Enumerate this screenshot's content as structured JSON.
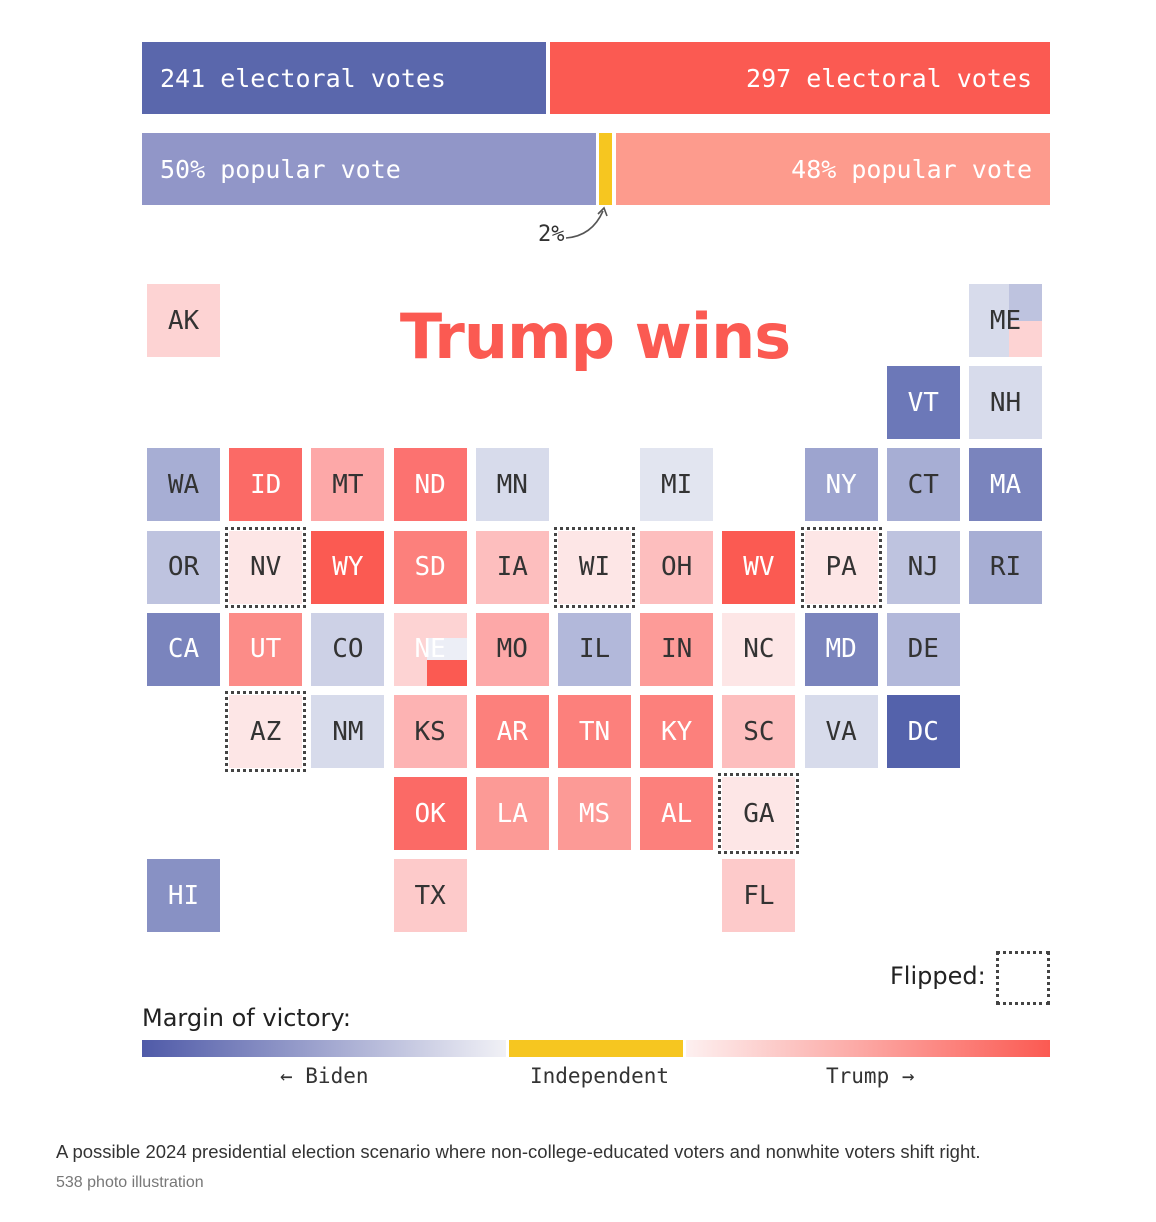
{
  "bars": {
    "biden_ev": "241 electoral votes",
    "trump_ev": "297 electoral votes",
    "biden_pv": "50% popular vote",
    "trump_pv": "48% popular vote",
    "independent_pv": "2%"
  },
  "title": "Trump wins",
  "colors": {
    "biden_dark": "#5a67ac",
    "trump_dark": "#fb5a52",
    "biden_pv": "#9196c8",
    "trump_pv": "#fd9b8d",
    "independent": "#f6c620"
  },
  "states": [
    {
      "abbr": "AK",
      "col": 0,
      "row": 0,
      "fill": "#fdd3d3",
      "text": "dark"
    },
    {
      "abbr": "ME",
      "col": 10,
      "row": 0,
      "fill": "#d7dbeb",
      "text": "dark",
      "split": "me"
    },
    {
      "abbr": "VT",
      "col": 9,
      "row": 1,
      "fill": "#6c78b8",
      "text": "light"
    },
    {
      "abbr": "NH",
      "col": 10,
      "row": 1,
      "fill": "#d7dbeb",
      "text": "dark"
    },
    {
      "abbr": "WA",
      "col": 0,
      "row": 2,
      "fill": "#a7aed4",
      "text": "dark"
    },
    {
      "abbr": "ID",
      "col": 1,
      "row": 2,
      "fill": "#fb6a66",
      "text": "light"
    },
    {
      "abbr": "MT",
      "col": 2,
      "row": 2,
      "fill": "#fda8a8",
      "text": "dark"
    },
    {
      "abbr": "ND",
      "col": 3,
      "row": 2,
      "fill": "#fc7270",
      "text": "light"
    },
    {
      "abbr": "MN",
      "col": 4,
      "row": 2,
      "fill": "#d7dbeb",
      "text": "dark"
    },
    {
      "abbr": "MI",
      "col": 6,
      "row": 2,
      "fill": "#e2e5f0",
      "text": "dark"
    },
    {
      "abbr": "NY",
      "col": 8,
      "row": 2,
      "fill": "#9da4cf",
      "text": "light"
    },
    {
      "abbr": "CT",
      "col": 9,
      "row": 2,
      "fill": "#a7aed4",
      "text": "dark"
    },
    {
      "abbr": "MA",
      "col": 10,
      "row": 2,
      "fill": "#7a84bd",
      "text": "light"
    },
    {
      "abbr": "OR",
      "col": 0,
      "row": 3,
      "fill": "#bec3df",
      "text": "dark"
    },
    {
      "abbr": "NV",
      "col": 1,
      "row": 3,
      "fill": "#fde6e6",
      "text": "dark",
      "flipped": true
    },
    {
      "abbr": "WY",
      "col": 2,
      "row": 3,
      "fill": "#fb5a52",
      "text": "light"
    },
    {
      "abbr": "SD",
      "col": 3,
      "row": 3,
      "fill": "#fc807c",
      "text": "light"
    },
    {
      "abbr": "IA",
      "col": 4,
      "row": 3,
      "fill": "#fdbebe",
      "text": "dark"
    },
    {
      "abbr": "WI",
      "col": 5,
      "row": 3,
      "fill": "#fde6e6",
      "text": "dark",
      "flipped": true
    },
    {
      "abbr": "OH",
      "col": 6,
      "row": 3,
      "fill": "#fdbebe",
      "text": "dark"
    },
    {
      "abbr": "WV",
      "col": 7,
      "row": 3,
      "fill": "#fb5a52",
      "text": "light"
    },
    {
      "abbr": "PA",
      "col": 8,
      "row": 3,
      "fill": "#fde6e6",
      "text": "dark",
      "flipped": true
    },
    {
      "abbr": "NJ",
      "col": 9,
      "row": 3,
      "fill": "#bec3df",
      "text": "dark"
    },
    {
      "abbr": "RI",
      "col": 10,
      "row": 3,
      "fill": "#a7aed4",
      "text": "dark"
    },
    {
      "abbr": "CA",
      "col": 0,
      "row": 4,
      "fill": "#7a84bd",
      "text": "light"
    },
    {
      "abbr": "UT",
      "col": 1,
      "row": 4,
      "fill": "#fc8c88",
      "text": "light"
    },
    {
      "abbr": "CO",
      "col": 2,
      "row": 4,
      "fill": "#cdd1e6",
      "text": "dark"
    },
    {
      "abbr": "NE",
      "col": 3,
      "row": 4,
      "fill": "#fdd3d3",
      "text": "light",
      "split": "ne"
    },
    {
      "abbr": "MO",
      "col": 4,
      "row": 4,
      "fill": "#fda8a8",
      "text": "dark"
    },
    {
      "abbr": "IL",
      "col": 5,
      "row": 4,
      "fill": "#b2b8da",
      "text": "dark"
    },
    {
      "abbr": "IN",
      "col": 6,
      "row": 4,
      "fill": "#fd9b98",
      "text": "dark"
    },
    {
      "abbr": "NC",
      "col": 7,
      "row": 4,
      "fill": "#fde6e6",
      "text": "dark"
    },
    {
      "abbr": "MD",
      "col": 8,
      "row": 4,
      "fill": "#7a84bd",
      "text": "light"
    },
    {
      "abbr": "DE",
      "col": 9,
      "row": 4,
      "fill": "#b2b8da",
      "text": "dark"
    },
    {
      "abbr": "AZ",
      "col": 1,
      "row": 5,
      "fill": "#fde6e6",
      "text": "dark",
      "flipped": true
    },
    {
      "abbr": "NM",
      "col": 2,
      "row": 5,
      "fill": "#d7dbeb",
      "text": "dark"
    },
    {
      "abbr": "KS",
      "col": 3,
      "row": 5,
      "fill": "#fdb3b3",
      "text": "dark"
    },
    {
      "abbr": "AR",
      "col": 4,
      "row": 5,
      "fill": "#fc807c",
      "text": "light"
    },
    {
      "abbr": "TN",
      "col": 5,
      "row": 5,
      "fill": "#fc807c",
      "text": "light"
    },
    {
      "abbr": "KY",
      "col": 6,
      "row": 5,
      "fill": "#fc807c",
      "text": "light"
    },
    {
      "abbr": "SC",
      "col": 7,
      "row": 5,
      "fill": "#fdbebe",
      "text": "dark"
    },
    {
      "abbr": "VA",
      "col": 8,
      "row": 5,
      "fill": "#d7dbeb",
      "text": "dark"
    },
    {
      "abbr": "DC",
      "col": 9,
      "row": 5,
      "fill": "#5462ab",
      "text": "light"
    },
    {
      "abbr": "OK",
      "col": 3,
      "row": 6,
      "fill": "#fb6a66",
      "text": "light"
    },
    {
      "abbr": "LA",
      "col": 4,
      "row": 6,
      "fill": "#fc9a96",
      "text": "light"
    },
    {
      "abbr": "MS",
      "col": 5,
      "row": 6,
      "fill": "#fc9a96",
      "text": "light"
    },
    {
      "abbr": "AL",
      "col": 6,
      "row": 6,
      "fill": "#fc807c",
      "text": "light"
    },
    {
      "abbr": "GA",
      "col": 7,
      "row": 6,
      "fill": "#fde6e6",
      "text": "dark",
      "flipped": true
    },
    {
      "abbr": "HI",
      "col": 0,
      "row": 7,
      "fill": "#8891c4",
      "text": "light"
    },
    {
      "abbr": "TX",
      "col": 3,
      "row": 7,
      "fill": "#fdcaca",
      "text": "dark"
    },
    {
      "abbr": "FL",
      "col": 7,
      "row": 7,
      "fill": "#fdcaca",
      "text": "dark"
    }
  ],
  "legend": {
    "flipped_label": "Flipped:",
    "margin_label": "Margin of victory:",
    "biden_label": "← Biden",
    "independent_label": "Independent",
    "trump_label": "Trump →"
  },
  "caption": "A possible 2024 presidential election scenario where non-college-educated voters and nonwhite voters shift right.",
  "credit": "538 photo illustration"
}
